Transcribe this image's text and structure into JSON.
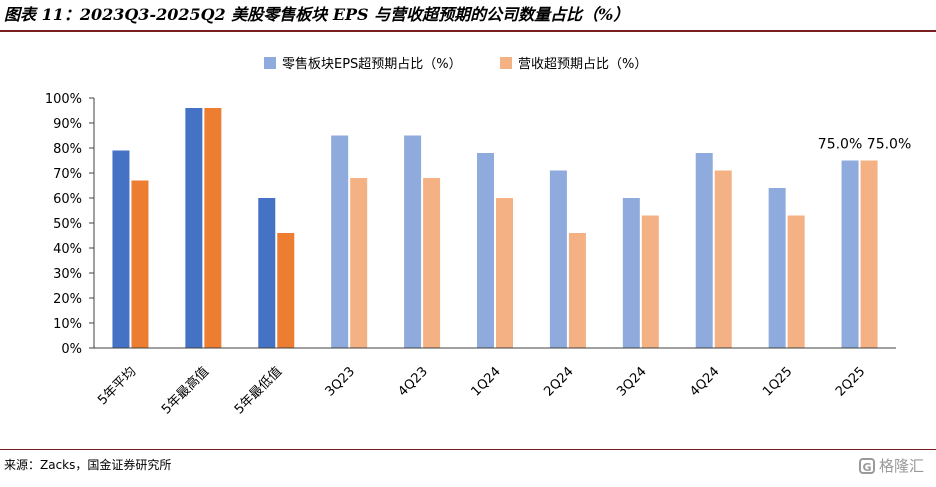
{
  "title": "图表 11：2023Q3-2025Q2 美股零售板块 EPS 与营收超预期的公司数量占比（%）",
  "source": "来源：Zacks，国金证券研究所",
  "watermark": "格隆汇",
  "colors": {
    "eps_summary": "#4472c4",
    "rev_summary": "#ed7d31",
    "eps_quarter": "#8faadc",
    "rev_quarter": "#f4b183",
    "title_rule": "#7a1f1f"
  },
  "chart_data": {
    "type": "bar",
    "categories": [
      "5年平均",
      "5年最高值",
      "5年最低值",
      "3Q23",
      "4Q23",
      "1Q24",
      "2Q24",
      "3Q24",
      "4Q24",
      "1Q25",
      "2Q25"
    ],
    "series": [
      {
        "name": "零售板块EPS超预期占比（%）",
        "values": [
          79,
          96,
          60,
          85,
          85,
          78,
          71,
          60,
          78,
          64,
          75
        ]
      },
      {
        "name": "营收超预期占比（%）",
        "values": [
          67,
          96,
          46,
          68,
          68,
          60,
          46,
          53,
          71,
          53,
          75
        ]
      }
    ],
    "data_labels": [
      "75.0%",
      "75.0%"
    ],
    "yticks": [
      "0%",
      "10%",
      "20%",
      "30%",
      "40%",
      "50%",
      "60%",
      "70%",
      "80%",
      "90%",
      "100%"
    ],
    "ylim": [
      0,
      100
    ],
    "legend_position": "top",
    "grid": false
  }
}
